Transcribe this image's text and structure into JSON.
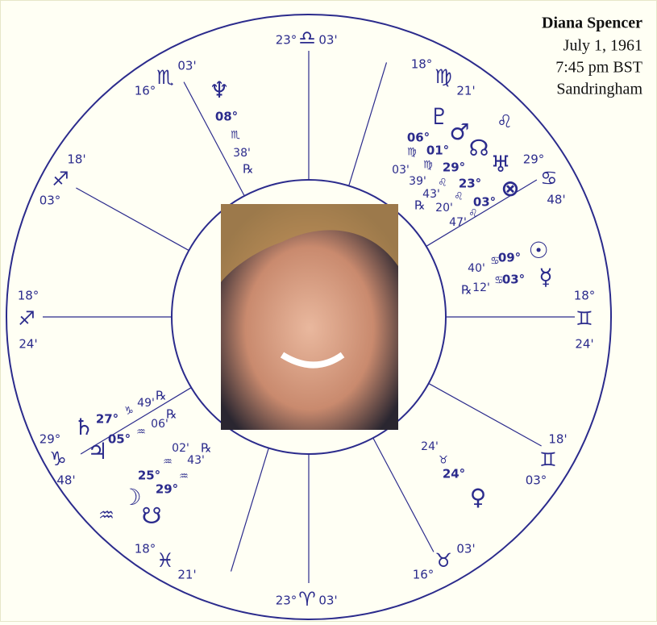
{
  "header": {
    "name": "Diana Spencer",
    "date": "July 1, 1961",
    "time": "7:45 pm BST",
    "place": "Sandringham"
  },
  "cusps": [
    {
      "degree": "23°",
      "sign": "♎",
      "minutes": "03'"
    },
    {
      "degree": "18°",
      "sign": "♍",
      "minutes": "21'"
    },
    {
      "degree": "29°",
      "sign": "♋",
      "minutes": "48'"
    },
    {
      "degree": "18°",
      "sign": "♊",
      "minutes": "24'"
    },
    {
      "degree": "03°",
      "sign": "♊",
      "minutes": "18'"
    },
    {
      "degree": "16°",
      "sign": "♉",
      "minutes": "03'"
    },
    {
      "degree": "23°",
      "sign": "♈",
      "minutes": "03'"
    },
    {
      "degree": "18°",
      "sign": "♓",
      "minutes": "21'"
    },
    {
      "degree": "29°",
      "sign": "♑",
      "minutes": "48'"
    },
    {
      "degree": "18°",
      "sign": "♐",
      "minutes": "24'"
    },
    {
      "degree": "03°",
      "sign": "♐",
      "minutes": "18'"
    },
    {
      "degree": "16°",
      "sign": "♏",
      "minutes": "03'"
    }
  ],
  "intercepted": [
    "♌",
    "♒"
  ],
  "planets": [
    {
      "glyph": "♆",
      "degree": "08°",
      "sign": "♏",
      "minutes": "38'",
      "retrograde": "℞"
    },
    {
      "glyph": "♇",
      "degree": "06°",
      "sign": "♍",
      "minutes": "03'"
    },
    {
      "glyph": "♂",
      "degree": "01°",
      "sign": "♍",
      "minutes": "39'"
    },
    {
      "glyph": "☊",
      "degree": "29°",
      "sign": "♌",
      "minutes": "43'",
      "retrograde": "℞"
    },
    {
      "glyph": "♅",
      "degree": "23°",
      "sign": "♌",
      "minutes": "20'"
    },
    {
      "glyph": "⊗",
      "degree": "03°",
      "sign": "♌",
      "minutes": "47'"
    },
    {
      "glyph": "☉",
      "degree": "09°",
      "sign": "♋",
      "minutes": "40'"
    },
    {
      "glyph": "☿",
      "degree": "03°",
      "sign": "♋",
      "minutes": "12'",
      "retrograde": "℞"
    },
    {
      "glyph": "♄",
      "degree": "27°",
      "sign": "♑",
      "minutes": "49'",
      "retrograde": "℞"
    },
    {
      "glyph": "♃",
      "degree": "05°",
      "sign": "♒",
      "minutes": "06'",
      "retrograde": "℞"
    },
    {
      "glyph": "♀",
      "degree": "24°",
      "sign": "♉",
      "minutes": "24'"
    },
    {
      "glyph": "☽",
      "degree": "25°",
      "sign": "♒",
      "minutes": "02'"
    },
    {
      "glyph": "☋",
      "degree": "29°",
      "sign": "♒",
      "minutes": "43'",
      "retrograde": "℞"
    }
  ]
}
